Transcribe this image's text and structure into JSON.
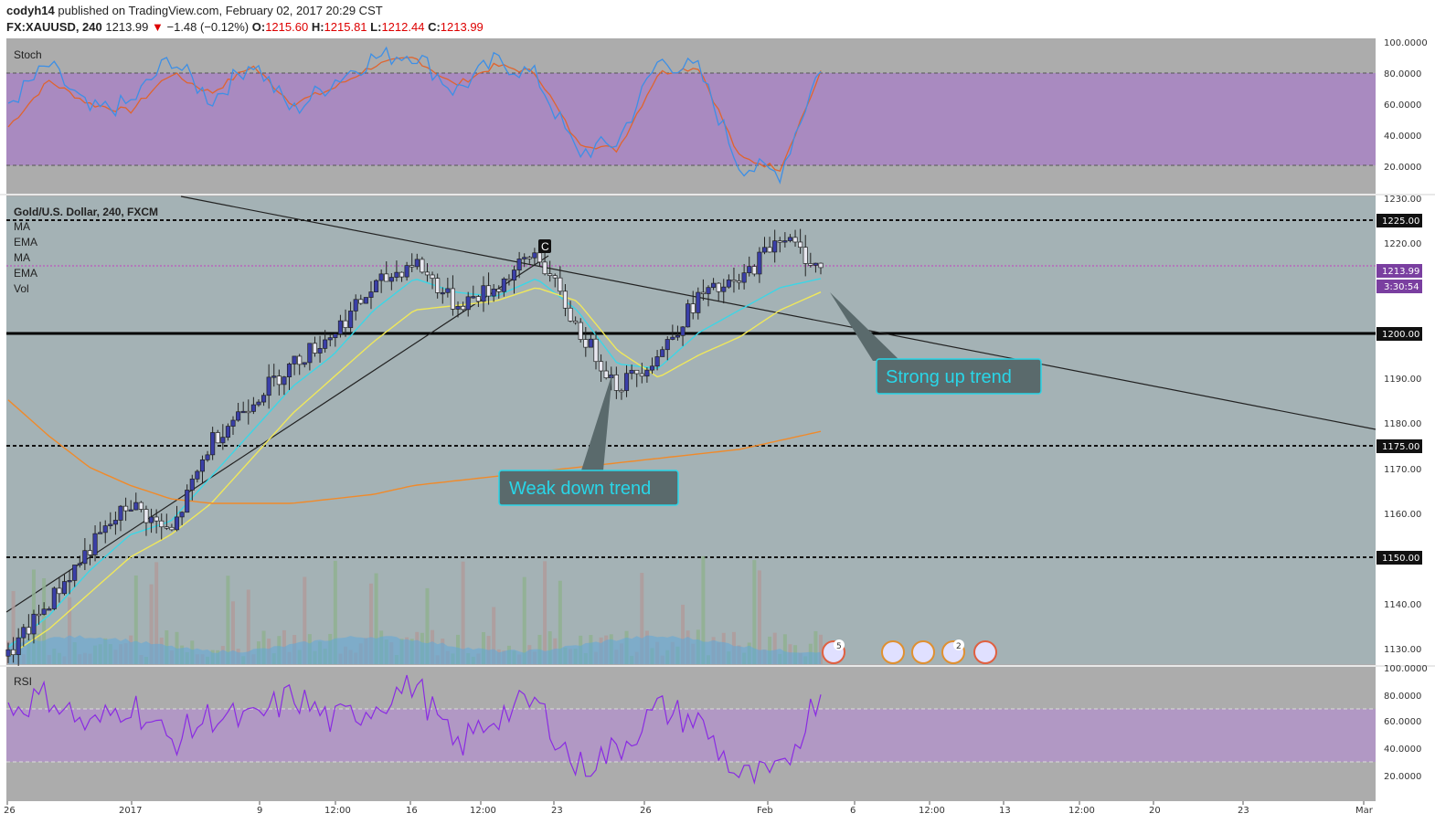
{
  "header": {
    "author": "codyh14",
    "published": "published on TradingView.com, February 02, 2017 20:29 CST",
    "symbol": "FX:XAUUSD, 240",
    "price": "1213.99",
    "change": "−1.48 (−0.12%)",
    "o_label": "O:",
    "o_value": "1215.60",
    "h_label": "H:",
    "h_value": "1215.81",
    "l_label": "L:",
    "l_value": "1212.44",
    "c_label": "C:",
    "c_value": "1213.99"
  },
  "panels": {
    "stoch": {
      "label": "Stoch",
      "ticks": [
        "100.0000",
        "80.0000",
        "60.0000",
        "40.0000",
        "20.0000"
      ]
    },
    "main": {
      "title": "Gold/U.S. Dollar, 240, FXCM",
      "indicators": [
        "MA",
        "EMA",
        "MA",
        "EMA",
        "Vol"
      ],
      "ticks": [
        "1230.00",
        "1220.00",
        "1190.00",
        "1180.00",
        "1170.00",
        "1160.00",
        "1140.00",
        "1130.00"
      ],
      "level_labels": [
        "1225.00",
        "1200.00",
        "1175.00",
        "1150.00"
      ],
      "last_price": "1213.99",
      "countdown": "3:30:54"
    },
    "rsi": {
      "label": "RSI",
      "ticks": [
        "100.0000",
        "80.0000",
        "60.0000",
        "40.0000",
        "20.0000"
      ]
    }
  },
  "time_axis": [
    "26",
    "2017",
    "9",
    "12:00",
    "16",
    "12:00",
    "23",
    "23",
    "26",
    "Feb",
    "6",
    "12:00",
    "13",
    "12:00",
    "20",
    "23",
    "Mar"
  ],
  "annotations": {
    "weak": "Weak down trend",
    "strong": "Strong up trend",
    "c_marker": "C"
  },
  "events": {
    "counts": [
      "5",
      "2"
    ]
  },
  "colors": {
    "bg": "#acacac",
    "zone_purple": "#a98ac0",
    "zone_teal": "#a4b2b5",
    "candle_body": "#3a3fa8",
    "stoch_k": "#3d8fe6",
    "stoch_d": "#e0642e",
    "rsi": "#8a2be2",
    "ma_fast": "#3cd6e6",
    "ma_mid": "#f0e85a",
    "ma_slow": "#f08a2a"
  },
  "chart_data": [
    {
      "type": "line",
      "title": "Stoch",
      "ylim": [
        0,
        100
      ],
      "bands": [
        20,
        80
      ],
      "x_index": [
        0,
        10,
        20,
        30,
        40,
        50,
        60,
        70,
        80,
        90,
        100,
        110,
        120,
        130,
        140,
        150,
        160,
        170,
        180,
        190,
        200
      ],
      "series": [
        {
          "values": [
            60,
            85,
            55,
            60,
            90,
            62,
            88,
            55,
            75,
            90,
            93,
            68,
            88,
            78,
            28,
            35,
            88,
            82,
            20,
            15,
            85
          ]
        },
        {
          "values": [
            45,
            75,
            60,
            55,
            80,
            67,
            85,
            60,
            70,
            85,
            90,
            72,
            85,
            80,
            35,
            30,
            80,
            84,
            25,
            18,
            80
          ]
        }
      ]
    },
    {
      "type": "candlestick",
      "title": "Gold/U.S. Dollar, 240, FXCM",
      "ylim": [
        1126,
        1231
      ],
      "levels": [
        1225,
        1200,
        1175,
        1150
      ],
      "last_price": 1213.99,
      "x_index": [
        0,
        10,
        20,
        30,
        40,
        50,
        60,
        70,
        80,
        90,
        100,
        110,
        120,
        130,
        140,
        150,
        160,
        170,
        180,
        190,
        200
      ],
      "close": [
        1128,
        1140,
        1152,
        1162,
        1155,
        1176,
        1185,
        1193,
        1200,
        1210,
        1216,
        1206,
        1210,
        1218,
        1201,
        1188,
        1195,
        1208,
        1211,
        1222,
        1214
      ],
      "series": [
        {
          "name": "MA",
          "values": [
            1130,
            1137,
            1147,
            1155,
            1158,
            1168,
            1178,
            1188,
            1195,
            1205,
            1212,
            1209,
            1208,
            1212,
            1205,
            1193,
            1192,
            1200,
            1205,
            1210,
            1212
          ]
        },
        {
          "name": "EMA",
          "values": [
            1128,
            1134,
            1142,
            1150,
            1155,
            1162,
            1172,
            1182,
            1190,
            1198,
            1205,
            1206,
            1207,
            1210,
            1207,
            1196,
            1190,
            1195,
            1199,
            1205,
            1209
          ]
        },
        {
          "name": "MA",
          "values": [
            1185,
            1177,
            1170,
            1166,
            1163,
            1162,
            1162,
            1162,
            1163,
            1164,
            1166,
            1167,
            1168,
            1169,
            1170,
            1171,
            1172,
            1173,
            1174,
            1176,
            1178
          ]
        }
      ]
    },
    {
      "type": "line",
      "title": "RSI",
      "ylim": [
        0,
        100
      ],
      "bands": [
        30,
        70
      ],
      "x_index": [
        0,
        10,
        20,
        30,
        40,
        50,
        60,
        70,
        80,
        90,
        100,
        110,
        120,
        130,
        140,
        150,
        160,
        170,
        180,
        190,
        200
      ],
      "values": [
        70,
        80,
        55,
        75,
        45,
        65,
        60,
        80,
        60,
        72,
        90,
        40,
        65,
        75,
        25,
        40,
        70,
        60,
        18,
        20,
        85
      ]
    }
  ]
}
